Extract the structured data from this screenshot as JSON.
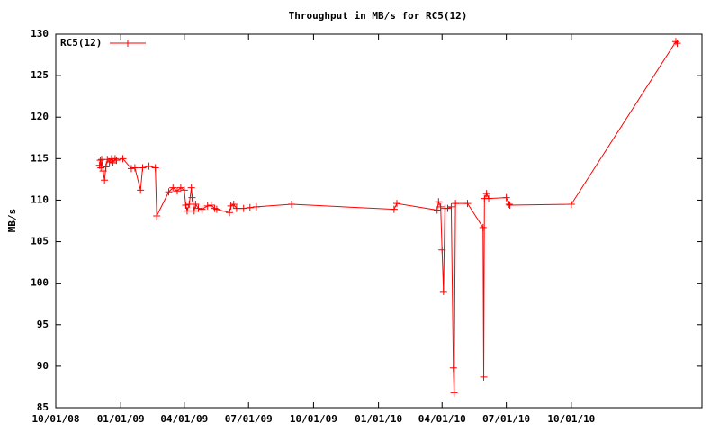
{
  "chart_data": {
    "type": "line",
    "title": "Throughput in MB/s for RC5(12)",
    "y_label": "MB/s",
    "legend": "top-left",
    "marker": "plus",
    "grid": false,
    "ylim": [
      85,
      130
    ],
    "yticks": [
      85,
      90,
      95,
      100,
      105,
      110,
      115,
      120,
      125,
      130
    ],
    "xlim": [
      "2008-10-01",
      "2011-04-04"
    ],
    "xticks": [
      {
        "value": "2008-10-01",
        "label": "10/01/08"
      },
      {
        "value": "2009-01-01",
        "label": "01/01/09"
      },
      {
        "value": "2009-04-01",
        "label": "04/01/09"
      },
      {
        "value": "2009-07-01",
        "label": "07/01/09"
      },
      {
        "value": "2009-10-01",
        "label": "10/01/09"
      },
      {
        "value": "2010-01-01",
        "label": "01/01/10"
      },
      {
        "value": "2010-04-01",
        "label": "04/01/10"
      },
      {
        "value": "2010-07-01",
        "label": "07/01/10"
      },
      {
        "value": "2010-10-01",
        "label": "10/01/10"
      }
    ],
    "x": [
      "2008-12-02",
      "2008-12-03",
      "2008-12-04",
      "2008-12-05",
      "2008-12-07",
      "2008-12-09",
      "2008-12-11",
      "2008-12-13",
      "2008-12-16",
      "2008-12-19",
      "2008-12-21",
      "2008-12-24",
      "2008-12-26",
      "2009-01-04",
      "2009-01-16",
      "2009-01-21",
      "2009-01-29",
      "2009-02-01",
      "2009-02-10",
      "2009-02-19",
      "2009-02-21",
      "2009-03-10",
      "2009-03-16",
      "2009-03-22",
      "2009-03-27",
      "2009-04-01",
      "2009-04-03",
      "2009-04-05",
      "2009-04-08",
      "2009-04-11",
      "2009-04-12",
      "2009-04-15",
      "2009-04-17",
      "2009-04-21",
      "2009-04-26",
      "2009-05-04",
      "2009-05-09",
      "2009-05-14",
      "2009-05-17",
      "2009-06-04",
      "2009-06-06",
      "2009-06-10",
      "2009-06-14",
      "2009-06-24",
      "2009-07-03",
      "2009-07-12",
      "2009-08-31",
      "2010-01-23",
      "2010-01-27",
      "2010-03-25",
      "2010-03-27",
      "2010-03-30",
      "2010-04-01",
      "2010-04-03",
      "2010-04-05",
      "2010-04-09",
      "2010-04-14",
      "2010-04-17",
      "2010-04-18",
      "2010-04-20",
      "2010-05-07",
      "2010-05-29",
      "2010-05-30",
      "2010-05-31",
      "2010-06-03",
      "2010-06-06",
      "2010-07-01",
      "2010-07-05",
      "2010-07-06",
      "2010-10-01",
      "2011-02-26",
      "2011-02-28"
    ],
    "series": [
      {
        "name": "RC5(12)",
        "color": "#ff0000",
        "values": [
          114.2,
          114.8,
          113.9,
          114.9,
          113.5,
          112.4,
          114,
          114.9,
          114.6,
          115,
          114.5,
          115,
          114.8,
          115,
          113.8,
          113.9,
          111.2,
          113.9,
          114.1,
          113.9,
          108.1,
          111,
          111.5,
          111.1,
          111.5,
          111.2,
          109.4,
          108.7,
          109.5,
          111.5,
          110.3,
          108.7,
          109.5,
          109,
          108.9,
          109.3,
          109.4,
          109,
          108.9,
          108.5,
          109.3,
          109.5,
          109,
          109,
          109.1,
          109.2,
          109.5,
          108.9,
          109.6,
          108.8,
          109.8,
          109.2,
          104,
          99,
          109,
          109,
          109.2,
          89.8,
          86.8,
          109.6,
          109.6,
          106.7,
          88.7,
          110.2,
          110.8,
          110.2,
          110.3,
          109.5,
          109.4,
          109.5,
          129.1,
          128.9
        ]
      }
    ]
  }
}
